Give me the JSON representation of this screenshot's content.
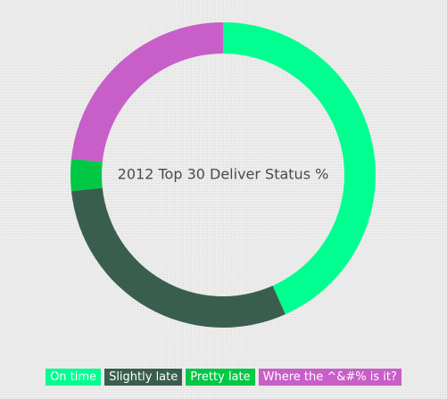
{
  "chart_data": {
    "type": "pie",
    "title": "2012 Top 30 Deliver Status %",
    "categories": [
      "On time",
      "Slightly late",
      "Pretty late",
      "Where the ^&#% is it?"
    ],
    "values": [
      43.3,
      30.0,
      3.4,
      23.3
    ],
    "colors": [
      "#00ff90",
      "#3a5e4d",
      "#00c845",
      "#c85ec8"
    ],
    "donut": true,
    "legend_position": "bottom"
  },
  "legend": {
    "items": [
      {
        "label": "On time",
        "color": "#00ff90"
      },
      {
        "label": "Slightly late",
        "color": "#3a5e4d"
      },
      {
        "label": "Pretty late",
        "color": "#00c845"
      },
      {
        "label": "Where the ^&#% is it?",
        "color": "#c85ec8"
      }
    ]
  }
}
